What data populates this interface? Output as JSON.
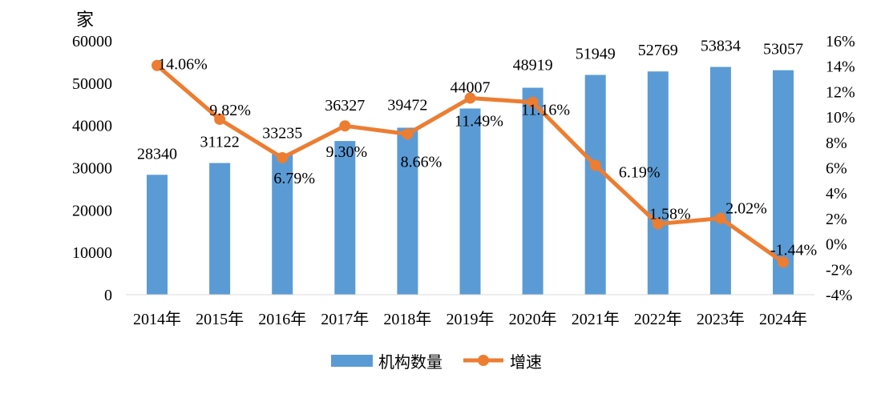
{
  "chart_data": {
    "type": "bar+line",
    "y_left_unit": "家",
    "categories": [
      "2014年",
      "2015年",
      "2016年",
      "2017年",
      "2018年",
      "2019年",
      "2020年",
      "2021年",
      "2022年",
      "2023年",
      "2024年"
    ],
    "series": [
      {
        "name": "机构数量",
        "type": "bar",
        "axis": "left",
        "color": "#5b9bd5",
        "values": [
          28340,
          31122,
          33235,
          36327,
          39472,
          44007,
          48919,
          51949,
          52769,
          53834,
          53057
        ]
      },
      {
        "name": "增速",
        "type": "line",
        "axis": "right",
        "color": "#ed7d31",
        "values": [
          14.06,
          9.82,
          6.79,
          9.3,
          8.66,
          11.49,
          11.16,
          6.19,
          1.58,
          2.02,
          -1.44
        ],
        "labels": [
          "14.06%",
          "9.82%",
          "6.79%",
          "9.30%",
          "8.66%",
          "11.49%",
          "11.16%",
          "6.19%",
          "1.58%",
          "2.02%",
          "-1.44%"
        ]
      }
    ],
    "y_left": {
      "range": [
        0,
        60000
      ],
      "ticks": [
        "0",
        "10000",
        "20000",
        "30000",
        "40000",
        "50000",
        "60000"
      ]
    },
    "y_right": {
      "range": [
        -4,
        16
      ],
      "ticks": [
        "-4%",
        "-2%",
        "0%",
        "2%",
        "4%",
        "6%",
        "8%",
        "10%",
        "12%",
        "14%",
        "16%"
      ]
    },
    "grid": false,
    "legend": "bottom"
  }
}
